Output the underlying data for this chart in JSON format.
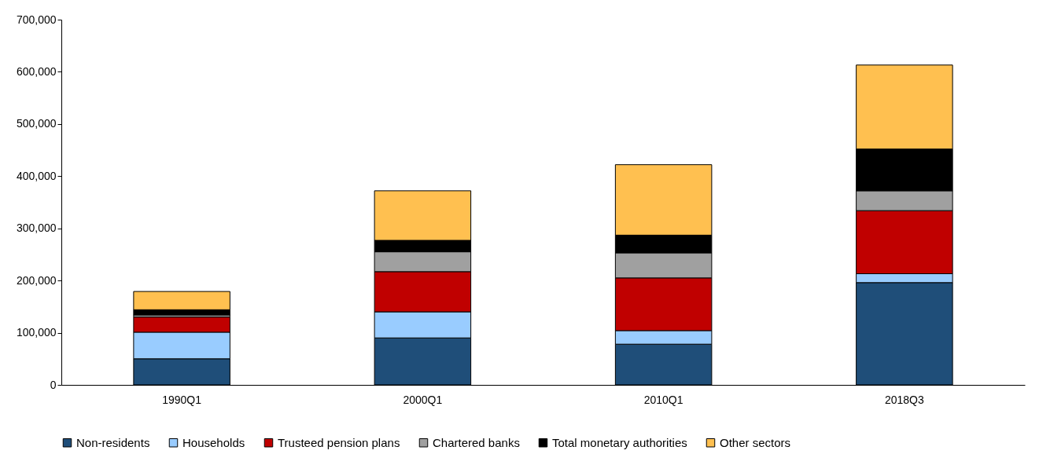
{
  "chart_data": {
    "type": "bar",
    "stacked": true,
    "categories": [
      "1990Q1",
      "2000Q1",
      "2010Q1",
      "2018Q3"
    ],
    "series": [
      {
        "name": "Non-residents",
        "color": "#1f4e79",
        "values": [
          50000,
          90000,
          78000,
          196000
        ]
      },
      {
        "name": "Households",
        "color": "#99ccff",
        "values": [
          51000,
          50000,
          26000,
          17000
        ]
      },
      {
        "name": "Trusteed pension plans",
        "color": "#c00000",
        "values": [
          29000,
          77000,
          101000,
          121000
        ]
      },
      {
        "name": "Chartered banks",
        "color": "#a0a0a0",
        "values": [
          4000,
          38000,
          48000,
          38000
        ]
      },
      {
        "name": "Total monetary authorities",
        "color": "#000000",
        "values": [
          10000,
          22000,
          34000,
          80000
        ]
      },
      {
        "name": "Other sectors",
        "color": "#ffc050",
        "values": [
          35000,
          95000,
          135000,
          161000
        ]
      }
    ],
    "ylim": [
      0,
      700000
    ],
    "yticks": [
      0,
      {
        "value": 100000,
        "label": "100,000"
      },
      {
        "value": 200000,
        "label": "200,000"
      },
      {
        "value": 300000,
        "label": "300,000"
      },
      {
        "value": 400000,
        "label": "400,000"
      },
      {
        "value": 500000,
        "label": "500,000"
      },
      {
        "value": 600000,
        "label": "600,000"
      },
      {
        "value": 700000,
        "label": "700,000"
      }
    ],
    "grid": false,
    "legend": "bottom"
  }
}
